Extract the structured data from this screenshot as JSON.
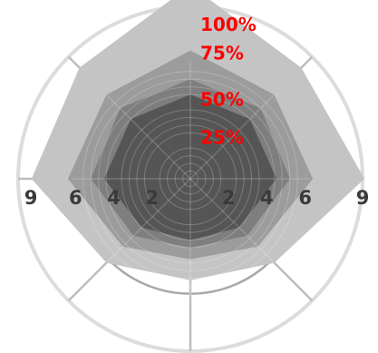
{
  "chart_data": {
    "type": "radar",
    "title": "",
    "axes_count": 8,
    "axis_max": 9,
    "ring_values": [
      2,
      4,
      6,
      9
    ],
    "inner_ring_values": [
      0.4,
      0.8,
      1.2,
      1.6,
      2.4,
      2.8,
      3.2,
      3.6,
      4.4,
      4.8,
      5.2,
      5.6
    ],
    "horizontal_tick_labels": {
      "left": [
        "9",
        "6",
        "4",
        "2"
      ],
      "right": [
        "2",
        "4",
        "6",
        "9"
      ]
    },
    "percent_labels": [
      "100%",
      "75%",
      "50%",
      "25%"
    ],
    "percent_label_values": [
      8.1,
      6.6,
      4.2,
      2.2
    ],
    "series": [
      {
        "name": "",
        "values": [
          10.1,
          8.2,
          9.1,
          6.2,
          5.3,
          6.2,
          8.3,
          8.2
        ],
        "color": "#c4c4c4"
      },
      {
        "name": "",
        "values": [
          6.7,
          6.2,
          6.4,
          5.0,
          4.2,
          5.0,
          6.4,
          6.2
        ],
        "color": "#9c9c9c"
      },
      {
        "name": "",
        "values": [
          5.2,
          5.2,
          5.2,
          4.2,
          3.6,
          4.2,
          5.2,
          5.2
        ],
        "color": "#7e7e7e"
      },
      {
        "name": "",
        "values": [
          4.4,
          4.4,
          4.5,
          3.6,
          3.2,
          3.6,
          4.5,
          4.4
        ],
        "color": "#555555"
      }
    ],
    "colors": {
      "ring_outer": "#dcdcdc",
      "ring_main": "#a8a8a8",
      "spoke": "#bdbdbd",
      "percent_text": "#ff0000"
    },
    "grid": true,
    "legend": "none"
  }
}
